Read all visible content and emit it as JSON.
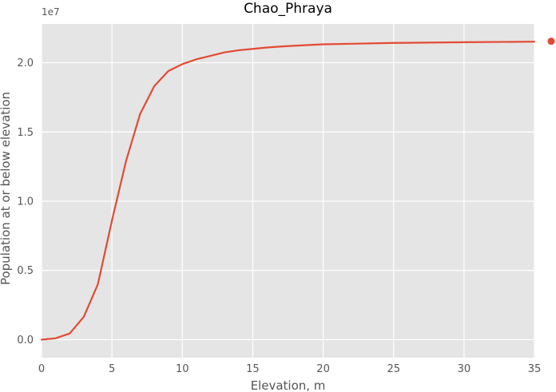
{
  "chart_data": {
    "type": "line",
    "title": "Chao_Phraya",
    "xlabel": "Elevation, m",
    "ylabel": "Population at or below elevation",
    "y_offset_text": "1e7",
    "xlim": [
      0,
      35
    ],
    "ylim": [
      -0.13,
      2.28
    ],
    "x_ticks": [
      0,
      5,
      10,
      15,
      20,
      25,
      30,
      35
    ],
    "x_tick_labels": [
      "0",
      "5",
      "10",
      "15",
      "20",
      "25",
      "30",
      "35"
    ],
    "y_ticks": [
      0,
      0.5,
      1.0,
      1.5,
      2.0
    ],
    "y_tick_labels": [
      "0.0",
      "0.5",
      "1.0",
      "1.5",
      "2.0"
    ],
    "grid": true,
    "colors": {
      "series": "#e24a33",
      "plot_bg": "#e5e5e5",
      "grid": "#ffffff"
    },
    "series": [
      {
        "x": [
          0,
          1,
          2,
          3,
          4,
          5,
          6,
          7,
          8,
          9,
          10,
          11,
          12,
          13,
          14,
          15,
          16,
          17,
          18,
          19,
          20,
          22,
          25,
          30,
          35
        ],
        "y": [
          0.0,
          0.01,
          0.045,
          0.165,
          0.4,
          0.86,
          1.29,
          1.63,
          1.83,
          1.94,
          1.99,
          2.025,
          2.05,
          2.075,
          2.09,
          2.1,
          2.11,
          2.117,
          2.123,
          2.128,
          2.133,
          2.137,
          2.143,
          2.148,
          2.152
        ]
      }
    ],
    "legend_marker": {
      "y": 2.155
    }
  }
}
